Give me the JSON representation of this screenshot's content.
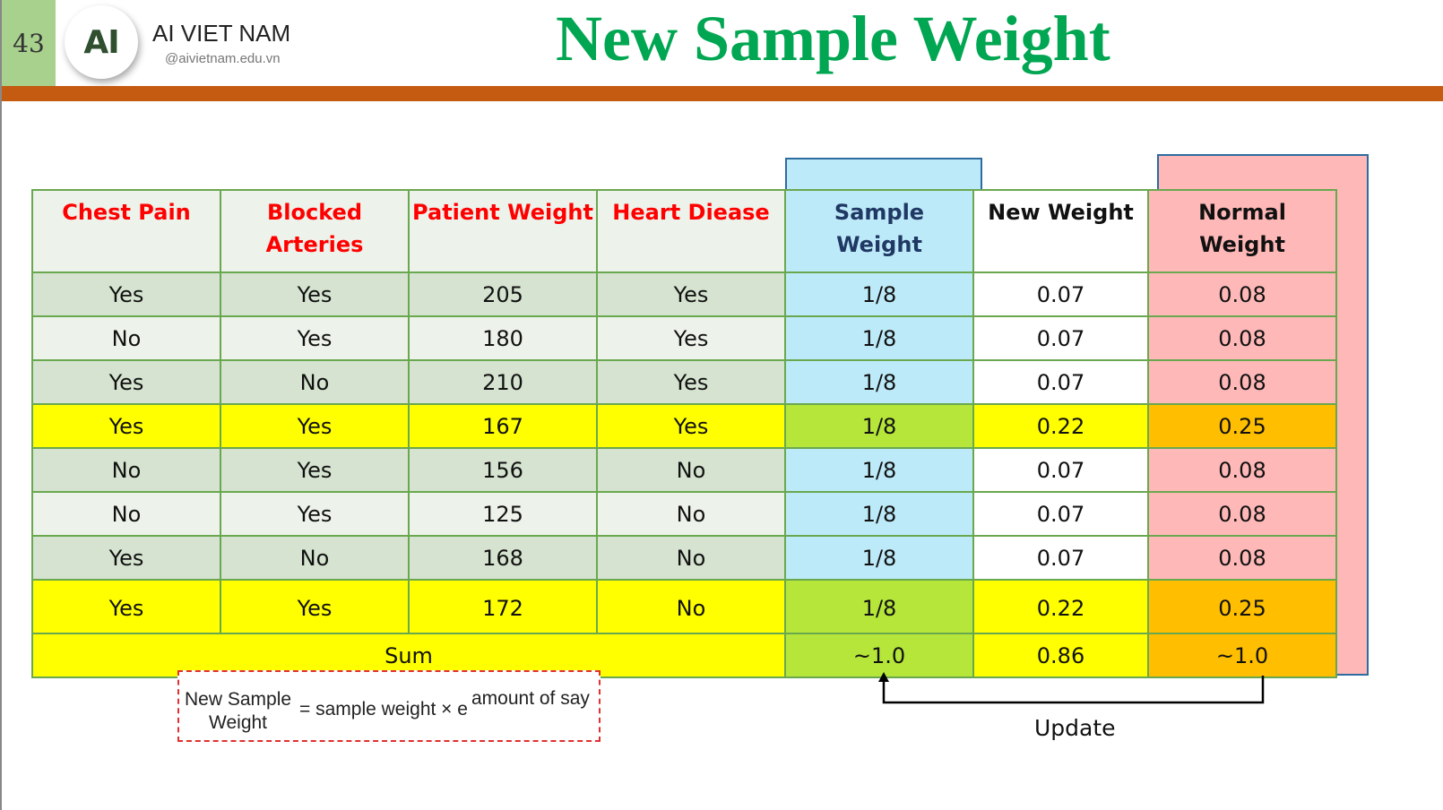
{
  "slide": {
    "page_number": "43"
  },
  "brand": {
    "logo_text": "AI",
    "name": "AI VIET NAM",
    "url": "@aivietnam.edu.vn"
  },
  "title": "New Sample Weight",
  "table": {
    "headers": [
      [
        "Chest  Pain"
      ],
      [
        "Blocked",
        "Arteries"
      ],
      [
        "Patient Weight"
      ],
      [
        "Heart Diease"
      ],
      [
        "Sample",
        "Weight"
      ],
      [
        "New Weight"
      ],
      [
        "Normal",
        "Weight"
      ]
    ],
    "rows": [
      [
        "Yes",
        "Yes",
        "205",
        "Yes",
        "1/8",
        "0.07",
        "0.08"
      ],
      [
        "No",
        "Yes",
        "180",
        "Yes",
        "1/8",
        "0.07",
        "0.08"
      ],
      [
        "Yes",
        "No",
        "210",
        "Yes",
        "1/8",
        "0.07",
        "0.08"
      ],
      [
        "Yes",
        "Yes",
        "167",
        "Yes",
        "1/8",
        "0.22",
        "0.25"
      ],
      [
        "No",
        "Yes",
        "156",
        "No",
        "1/8",
        "0.07",
        "0.08"
      ],
      [
        "No",
        "Yes",
        "125",
        "No",
        "1/8",
        "0.07",
        "0.08"
      ],
      [
        "Yes",
        "No",
        "168",
        "No",
        "1/8",
        "0.07",
        "0.08"
      ],
      [
        "Yes",
        "Yes",
        "172",
        "No",
        "1/8",
        "0.22",
        "0.25"
      ]
    ],
    "sum_row": {
      "label": "Sum",
      "sample_weight": "~1.0",
      "new_weight": "0.86",
      "normal_weight": "~1.0"
    }
  },
  "formula": {
    "lhs_line1": "New Sample",
    "lhs_line2": "Weight",
    "rhs": "= sample weight × e",
    "exponent": "amount of say"
  },
  "annotation": {
    "update_label": "Update"
  },
  "colors": {
    "title": "#00a651",
    "header_red": "#ff0000",
    "highlight_yellow": "#ffff00",
    "highlight_green": "#b5e639",
    "highlight_orange": "#ffbf00",
    "sample_weight_blue": "#bdeaf8",
    "normal_weight_pink": "#ffb8b8",
    "accent_band": "#c55a11"
  }
}
